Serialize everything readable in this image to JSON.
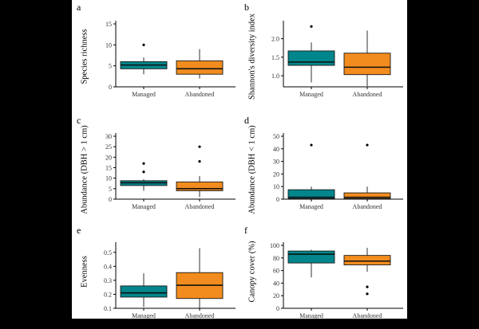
{
  "colors": {
    "managed": "#00868B",
    "abandoned": "#F28C1E",
    "outline": "#1a1a1a"
  },
  "chart_data": [
    {
      "panel": "a",
      "type": "box",
      "ylabel": "Species richness",
      "categories": [
        "Managed",
        "Abandoned"
      ],
      "ylim": [
        0,
        15
      ],
      "yticks": [
        0,
        5,
        10,
        15
      ],
      "series": [
        {
          "name": "Managed",
          "q1": 4.3,
          "median": 5.2,
          "q3": 6.0,
          "whisker_low": 3.0,
          "whisker_high": 7.0,
          "outliers": [
            10
          ]
        },
        {
          "name": "Abandoned",
          "q1": 3.0,
          "median": 4.3,
          "q3": 6.2,
          "whisker_low": 2.0,
          "whisker_high": 9.0,
          "outliers": []
        }
      ]
    },
    {
      "panel": "b",
      "type": "box",
      "ylabel": "Shannon's diversity index",
      "categories": [
        "Managed",
        "Abandoned"
      ],
      "ylim": [
        0.7,
        2.4
      ],
      "yticks": [
        1.0,
        1.5,
        2.0
      ],
      "series": [
        {
          "name": "Managed",
          "q1": 1.28,
          "median": 1.37,
          "q3": 1.67,
          "whisker_low": 0.82,
          "whisker_high": 1.9,
          "outliers": [
            2.33
          ]
        },
        {
          "name": "Abandoned",
          "q1": 1.03,
          "median": 1.23,
          "q3": 1.61,
          "whisker_low": 0.72,
          "whisker_high": 2.22,
          "outliers": []
        }
      ]
    },
    {
      "panel": "c",
      "type": "box",
      "ylabel": "Abundance (DBH > 1 cm)",
      "categories": [
        "Managed",
        "Abandoned"
      ],
      "ylim": [
        0,
        30
      ],
      "yticks": [
        0,
        5,
        10,
        15,
        20,
        25,
        30
      ],
      "series": [
        {
          "name": "Managed",
          "q1": 6.5,
          "median": 7.8,
          "q3": 8.8,
          "whisker_low": 4.0,
          "whisker_high": 9.5,
          "outliers": [
            13,
            17
          ]
        },
        {
          "name": "Abandoned",
          "q1": 4.0,
          "median": 5.0,
          "q3": 8.2,
          "whisker_low": 1.0,
          "whisker_high": 11.0,
          "outliers": [
            18,
            25
          ]
        }
      ]
    },
    {
      "panel": "d",
      "type": "box",
      "ylabel": "Abundance (DBH < 1 cm)",
      "categories": [
        "Managed",
        "Abandoned"
      ],
      "ylim": [
        0,
        50
      ],
      "yticks": [
        0,
        10,
        20,
        30,
        40,
        50
      ],
      "series": [
        {
          "name": "Managed",
          "q1": 0.5,
          "median": 1.5,
          "q3": 7.5,
          "whisker_low": 0,
          "whisker_high": 10.0,
          "outliers": [
            43
          ]
        },
        {
          "name": "Abandoned",
          "q1": 0.5,
          "median": 1.5,
          "q3": 5.0,
          "whisker_low": 0,
          "whisker_high": 10.0,
          "outliers": [
            43
          ]
        }
      ]
    },
    {
      "panel": "e",
      "type": "box",
      "ylabel": "Evenness",
      "categories": [
        "Managed",
        "Abandoned"
      ],
      "ylim": [
        0.1,
        0.55
      ],
      "yticks": [
        0.1,
        0.2,
        0.3,
        0.4,
        0.5
      ],
      "series": [
        {
          "name": "Managed",
          "q1": 0.18,
          "median": 0.21,
          "q3": 0.26,
          "whisker_low": 0.11,
          "whisker_high": 0.35,
          "outliers": []
        },
        {
          "name": "Abandoned",
          "q1": 0.17,
          "median": 0.265,
          "q3": 0.355,
          "whisker_low": 0.1,
          "whisker_high": 0.53,
          "outliers": []
        }
      ]
    },
    {
      "panel": "f",
      "type": "box",
      "ylabel": "Canopy cover (%)",
      "categories": [
        "Managed",
        "Abandoned"
      ],
      "ylim": [
        0,
        100
      ],
      "yticks": [
        0,
        20,
        40,
        60,
        80,
        100
      ],
      "series": [
        {
          "name": "Managed",
          "q1": 72,
          "median": 86,
          "q3": 91,
          "whisker_low": 49,
          "whisker_high": 93,
          "outliers": []
        },
        {
          "name": "Abandoned",
          "q1": 69,
          "median": 75,
          "q3": 84,
          "whisker_low": 58,
          "whisker_high": 96,
          "outliers": [
            23,
            34
          ]
        }
      ]
    }
  ]
}
